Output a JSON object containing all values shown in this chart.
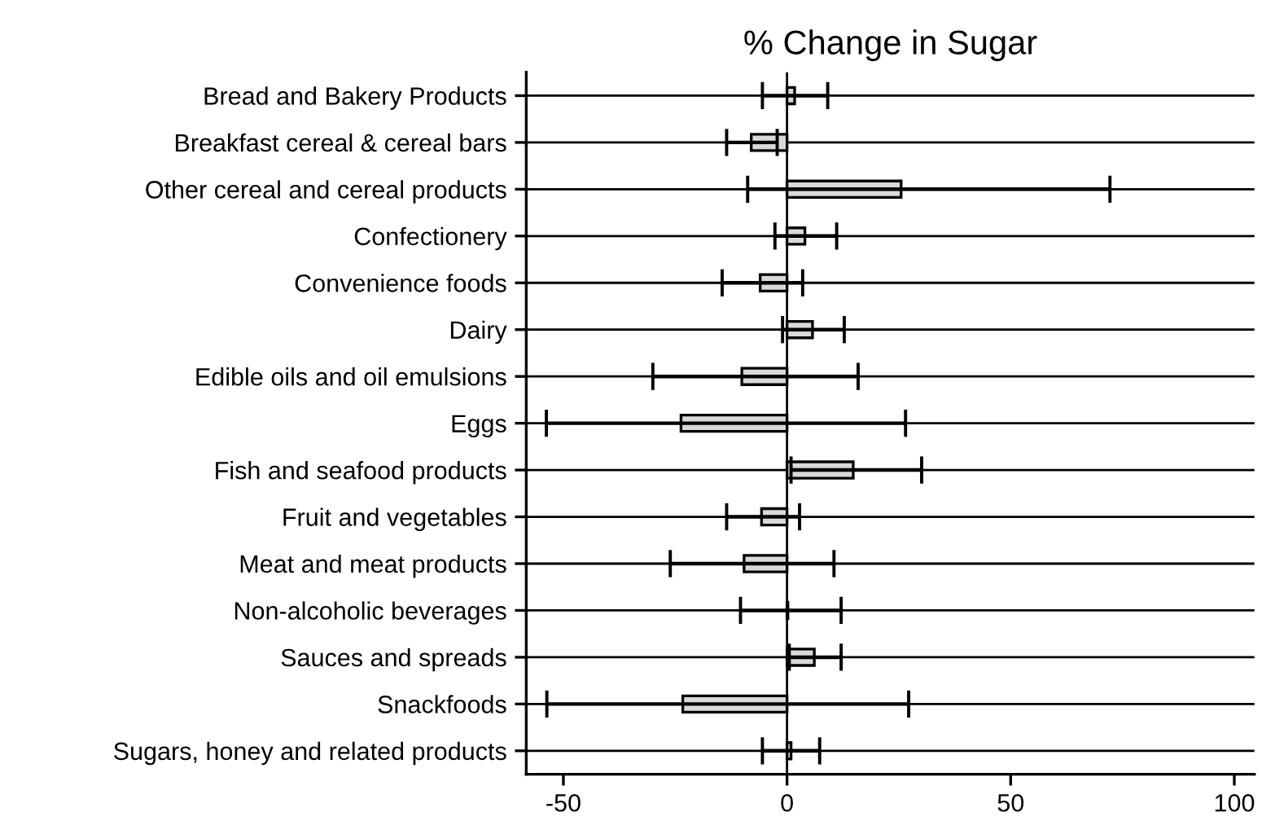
{
  "chart_data": {
    "type": "bar",
    "orientation": "horizontal",
    "title": "% Change in Sugar",
    "categories": [
      "Bread and Bakery Products",
      "Breakfast cereal & cereal bars",
      "Other cereal and cereal products",
      "Confectionery",
      "Convenience foods",
      "Dairy",
      "Edible oils and oil emulsions",
      "Eggs",
      "Fish and seafood products",
      "Fruit and vegetables",
      "Meat and meat products",
      "Non-alcoholic beverages",
      "Sauces and spreads",
      "Snackfoods",
      "Sugars, honey and related products"
    ],
    "values": [
      1.7,
      -8.0,
      25.5,
      4.0,
      -6.0,
      5.7,
      -10.1,
      -23.7,
      14.8,
      -5.7,
      -9.6,
      0.2,
      6.1,
      -23.3,
      0.9
    ],
    "errors": [
      [
        -5.5,
        9.1
      ],
      [
        -13.5,
        -2.2
      ],
      [
        -8.8,
        72.2
      ],
      [
        -2.7,
        11.1
      ],
      [
        -14.5,
        3.5
      ],
      [
        -1.0,
        12.8
      ],
      [
        -30.0,
        15.9
      ],
      [
        -53.8,
        26.5
      ],
      [
        0.9,
        30.1
      ],
      [
        -13.5,
        2.8
      ],
      [
        -26.1,
        10.5
      ],
      [
        -10.4,
        12.1
      ],
      [
        0.5,
        12.1
      ],
      [
        -53.7,
        27.2
      ],
      [
        -5.5,
        7.3
      ]
    ],
    "color": "#d9d9d9",
    "xlim": [
      -58.3,
      104.5
    ],
    "xticks": [
      -50,
      0,
      50,
      100
    ],
    "grid": "y",
    "ref_lines": [
      {
        "axis": "x",
        "value": 0,
        "color": "#000000"
      }
    ]
  }
}
